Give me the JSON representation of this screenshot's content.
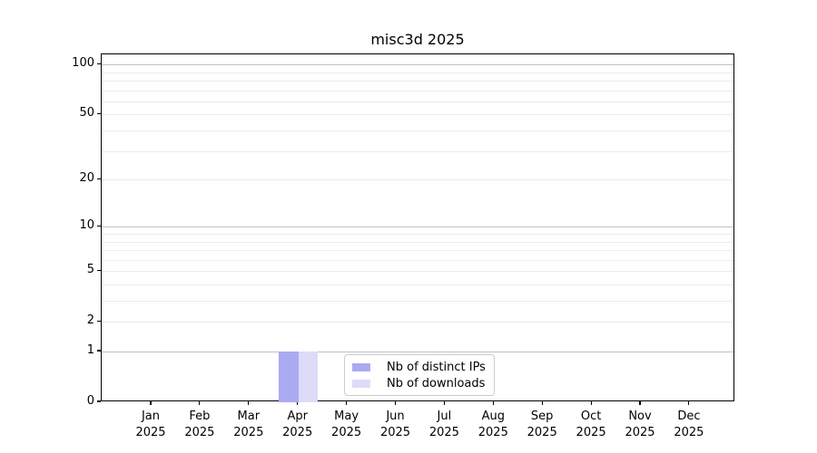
{
  "chart_data": {
    "type": "bar",
    "title": "misc3d 2025",
    "categories": [
      "Jan",
      "Feb",
      "Mar",
      "Apr",
      "May",
      "Jun",
      "Jul",
      "Aug",
      "Sep",
      "Oct",
      "Nov",
      "Dec"
    ],
    "x_year_label": "2025",
    "series": [
      {
        "name": "Nb of distinct IPs",
        "color": "#aaaaf0",
        "values": [
          0,
          0,
          0,
          1,
          0,
          0,
          0,
          0,
          0,
          0,
          0,
          0
        ]
      },
      {
        "name": "Nb of downloads",
        "color": "#dcdcf8",
        "values": [
          0,
          0,
          0,
          1,
          0,
          0,
          0,
          0,
          0,
          0,
          0,
          0
        ]
      }
    ],
    "y_axis": {
      "scale": "log1p",
      "min": 0,
      "max": 115,
      "ticks": [
        0,
        1,
        2,
        5,
        10,
        20,
        50,
        100
      ],
      "major_gridlines": [
        1,
        10,
        100
      ],
      "minor_gridlines": [
        2,
        3,
        4,
        5,
        6,
        7,
        8,
        9,
        20,
        30,
        40,
        50,
        60,
        70,
        80,
        90
      ]
    },
    "legend": {
      "position": "lower center",
      "entries": [
        "Nb of distinct IPs",
        "Nb of downloads"
      ]
    },
    "grid": "on"
  }
}
